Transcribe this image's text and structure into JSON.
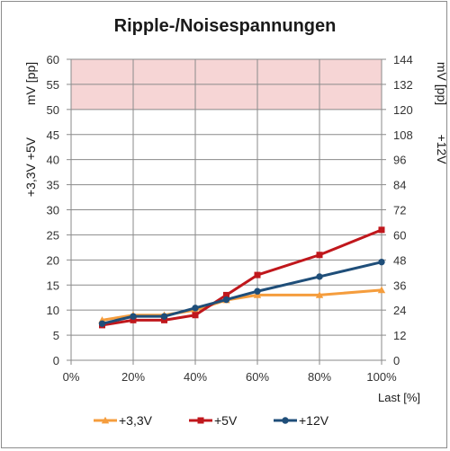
{
  "chart_data": {
    "type": "line",
    "title": "Ripple-/Noisespannungen",
    "xlabel": "Last [%]",
    "ylabel_left_top": "mV [pp]",
    "ylabel_left_bottom": "+3,3V +5V",
    "ylabel_right_top": "mV [pp]",
    "ylabel_right_bottom": "+12V",
    "x_ticks": [
      "0%",
      "20%",
      "40%",
      "60%",
      "80%",
      "100%"
    ],
    "xlim": [
      0,
      100
    ],
    "ylim_left": [
      0,
      60
    ],
    "ylim_right": [
      0,
      144
    ],
    "y_ticks_left": [
      "0",
      "5",
      "10",
      "15",
      "20",
      "25",
      "30",
      "35",
      "40",
      "45",
      "50",
      "55",
      "60"
    ],
    "y_ticks_right": [
      "0",
      "12",
      "24",
      "36",
      "48",
      "60",
      "72",
      "84",
      "96",
      "108",
      "120",
      "132",
      "144"
    ],
    "grid": true,
    "limit_band": {
      "from": 50,
      "to": 60,
      "color": "#f6d5d5"
    },
    "legend_position": "bottom",
    "series": [
      {
        "name": "+3,3V",
        "axis": "left",
        "color": "#f59d3d",
        "marker": "triangle",
        "x": [
          10,
          20,
          30,
          40,
          50,
          60,
          80,
          100
        ],
        "y": [
          8,
          9,
          9,
          10,
          12,
          13,
          13,
          14
        ]
      },
      {
        "name": "+5V",
        "axis": "left",
        "color": "#c0171c",
        "marker": "square",
        "x": [
          10,
          20,
          30,
          40,
          50,
          60,
          80,
          100
        ],
        "y": [
          7,
          8,
          8,
          9,
          13,
          17,
          21,
          26
        ]
      },
      {
        "name": "+12V",
        "axis": "right",
        "color": "#1f4e79",
        "marker": "circle",
        "x": [
          10,
          20,
          30,
          40,
          50,
          60,
          80,
          100
        ],
        "y": [
          17.5,
          21,
          21,
          25,
          29,
          33,
          40,
          47
        ]
      }
    ]
  }
}
